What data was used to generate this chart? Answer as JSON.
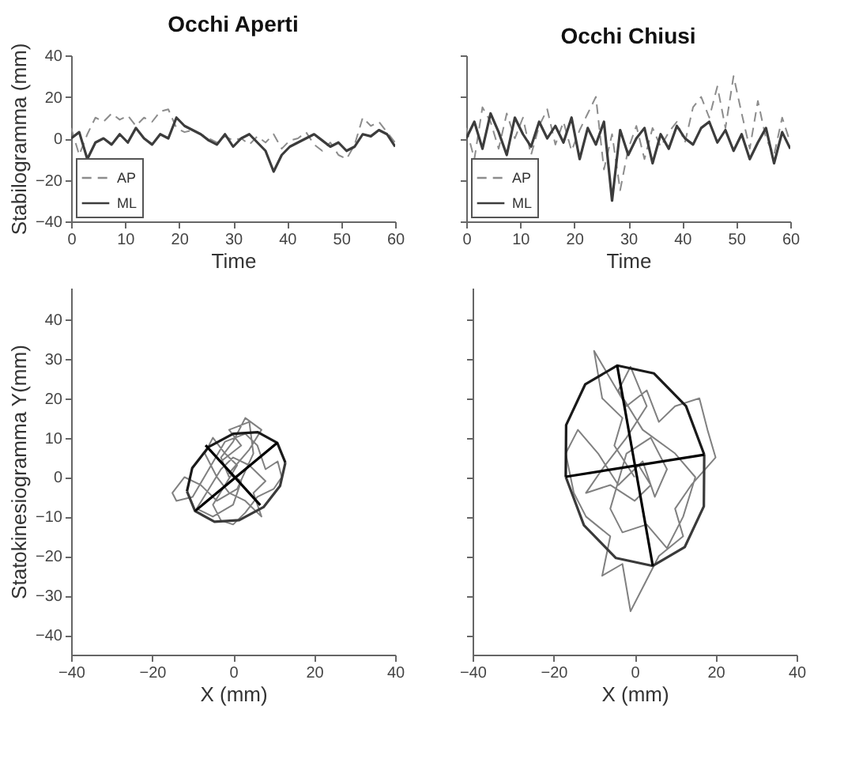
{
  "chart_data": [
    {
      "type": "line",
      "title": "Occhi Aperti",
      "xlabel": "Time",
      "ylabel": "Stabilogramma (mm)",
      "xlim": [
        0,
        60
      ],
      "ylim": [
        -40,
        40
      ],
      "xticks": [
        0,
        10,
        20,
        30,
        40,
        50,
        60
      ],
      "yticks": [
        -40,
        -20,
        0,
        20,
        40
      ],
      "legend": "bottom left",
      "x": [
        0,
        1.5,
        3,
        4.5,
        6,
        7.5,
        9,
        10.5,
        12,
        13.5,
        15,
        16.5,
        18,
        19.5,
        21,
        22.5,
        24,
        25.5,
        27,
        28.5,
        30,
        31.5,
        33,
        34.5,
        36,
        37.5,
        39,
        40.5,
        42,
        43.5,
        45,
        46.5,
        48,
        49.5,
        51,
        52.5,
        54,
        55.5,
        57,
        58.5,
        60
      ],
      "series": [
        {
          "name": "AP",
          "color": "#8c8c8c",
          "line_style": "dashed",
          "values": [
            5,
            -8,
            2,
            10,
            8,
            12,
            9,
            11,
            6,
            10,
            8,
            13,
            14,
            5,
            3,
            4,
            2,
            0,
            -2,
            1,
            -1,
            0,
            -3,
            1,
            -2,
            2,
            -5,
            -1,
            0,
            3,
            -3,
            -6,
            -2,
            -8,
            -10,
            -3,
            10,
            6,
            8,
            3,
            -2
          ]
        },
        {
          "name": "ML",
          "color": "#3c3c3c",
          "line_style": "solid",
          "values": [
            0,
            3,
            -10,
            -2,
            0,
            -3,
            2,
            -2,
            5,
            0,
            -3,
            2,
            0,
            10,
            6,
            4,
            2,
            -1,
            -3,
            2,
            -4,
            0,
            2,
            -2,
            -6,
            -16,
            -8,
            -4,
            -2,
            0,
            2,
            -1,
            -4,
            -2,
            -6,
            -4,
            2,
            1,
            4,
            2,
            -4
          ]
        }
      ]
    },
    {
      "type": "line",
      "title": "Occhi Chiusi",
      "xlabel": "Time",
      "xlim": [
        0,
        60
      ],
      "ylim": [
        -40,
        40
      ],
      "xticks": [
        0,
        10,
        20,
        30,
        40,
        50,
        60
      ],
      "yticks": [
        -40,
        -20,
        0,
        20,
        40
      ],
      "legend": "bottom left",
      "tick_labels": "x",
      "x": [
        0,
        1.5,
        3,
        4.5,
        6,
        7.5,
        9,
        10.5,
        12,
        13.5,
        15,
        16.5,
        18,
        19.5,
        21,
        22.5,
        24,
        25.5,
        27,
        28.5,
        30,
        31.5,
        33,
        34.5,
        36,
        37.5,
        39,
        40.5,
        42,
        43.5,
        45,
        46.5,
        48,
        49.5,
        51,
        52.5,
        54,
        55.5,
        57,
        58.5,
        60
      ],
      "series": [
        {
          "name": "AP",
          "color": "#8c8c8c",
          "line_style": "dashed",
          "values": [
            5,
            -10,
            15,
            8,
            -5,
            12,
            0,
            10,
            -8,
            6,
            14,
            -3,
            8,
            -6,
            4,
            12,
            20,
            -15,
            2,
            -25,
            -5,
            6,
            -10,
            5,
            -4,
            3,
            8,
            -2,
            15,
            20,
            10,
            25,
            5,
            30,
            12,
            -5,
            18,
            0,
            -8,
            10,
            -2
          ]
        },
        {
          "name": "ML",
          "color": "#3c3c3c",
          "line_style": "solid",
          "values": [
            0,
            8,
            -5,
            12,
            3,
            -8,
            10,
            2,
            -4,
            8,
            0,
            6,
            -2,
            10,
            -10,
            5,
            -3,
            8,
            -30,
            4,
            -8,
            0,
            5,
            -12,
            2,
            -5,
            6,
            0,
            -3,
            5,
            8,
            -2,
            4,
            -6,
            2,
            -10,
            -2,
            5,
            -12,
            3,
            -5
          ]
        }
      ]
    },
    {
      "type": "line",
      "xlabel": "X (mm)",
      "ylabel": "Statokinesiogramma Y(mm)",
      "xlim": [
        -40,
        40
      ],
      "ylim": [
        -45,
        48
      ],
      "xticks": [
        -40,
        -20,
        0,
        20,
        40
      ],
      "yticks": [
        -40,
        -30,
        -20,
        -10,
        0,
        10,
        20,
        30,
        40
      ],
      "series": [
        {
          "color": "#808080",
          "x": [
            0,
            -3,
            2,
            -1,
            4,
            5,
            1,
            -4,
            -8,
            -12,
            -15,
            -14,
            -10,
            -6,
            -2,
            3,
            6,
            8,
            11,
            12,
            10,
            6,
            3,
            0,
            -3,
            -5,
            -2,
            1,
            -2,
            -5,
            -7,
            -4,
            -1,
            3,
            7,
            5,
            8,
            4,
            0,
            -3,
            -6,
            -9,
            -5,
            0,
            2,
            -1,
            4,
            7,
            3,
            0,
            -3,
            -1
          ],
          "values": [
            0,
            4,
            8,
            12,
            14,
            6,
            -3,
            -6,
            -2,
            0,
            -4,
            -6,
            -5,
            2,
            9,
            11,
            8,
            2,
            4,
            0,
            -3,
            -5,
            -9,
            -12,
            -11,
            -7,
            -2,
            3,
            6,
            10,
            6,
            0,
            -4,
            -6,
            -10,
            -4,
            -1,
            3,
            5,
            2,
            -3,
            -8,
            -10,
            -7,
            -1,
            1,
            7,
            12,
            15,
            9,
            5,
            0
          ]
        },
        {
          "color": "#1a1a1a",
          "x": [
            -11.4,
            -10.1,
            -6,
            0,
            6.1,
            10.9,
            12.9
          ],
          "values": [
            -3.6,
            2.3,
            7.7,
            11,
            11.4,
            8.7,
            3.7
          ]
        },
        {
          "color": "#3a3a3a",
          "x": [
            -11.4,
            -9.4,
            -4.6,
            1.5,
            7.5,
            11.6,
            12.9
          ],
          "values": [
            -3.6,
            -8.6,
            -11.3,
            -10.9,
            -7.6,
            -2.2,
            3.7
          ]
        },
        {
          "color": "#000000",
          "x": [
            -9.4,
            10.9
          ],
          "values": [
            -8.6,
            8.7
          ]
        },
        {
          "color": "#000000",
          "x": [
            -6.8,
            6.7
          ],
          "values": [
            8.1,
            -7.1
          ]
        }
      ]
    },
    {
      "type": "line",
      "xlabel": "X (mm)",
      "xlim": [
        -40,
        40
      ],
      "ylim": [
        -45,
        48
      ],
      "xticks": [
        -40,
        -20,
        0,
        20,
        40
      ],
      "yticks": [
        -40,
        -30,
        -20,
        -10,
        0,
        10,
        20,
        30,
        40
      ],
      "tick_labels": "x",
      "series": [
        {
          "color": "#808080",
          "x": [
            0,
            -5,
            -3,
            -8,
            -10,
            -6,
            -2,
            3,
            6,
            10,
            16,
            18,
            20,
            14,
            10,
            12,
            6,
            2,
            -1,
            -3,
            -8,
            -6,
            -12,
            -15,
            -17,
            -14,
            -9,
            -4,
            2,
            5,
            8,
            4,
            -2,
            -6,
            -3,
            3,
            8,
            12,
            15,
            10,
            2,
            -4,
            -1,
            3,
            -2,
            -8,
            -12,
            -6,
            0,
            4,
            1
          ],
          "values": [
            0,
            8,
            15,
            20,
            32,
            25,
            18,
            22,
            14,
            18,
            20,
            12,
            5,
            -2,
            -8,
            -15,
            -20,
            -28,
            -34,
            -22,
            -25,
            -15,
            -10,
            -4,
            6,
            12,
            6,
            -2,
            4,
            -5,
            2,
            10,
            6,
            -8,
            -14,
            -12,
            -18,
            -10,
            0,
            6,
            12,
            22,
            28,
            18,
            10,
            2,
            -4,
            -2,
            -6,
            -2,
            3
          ]
        },
        {
          "color": "#1a1a1a",
          "x": [
            -17,
            -16.9,
            -12.2,
            -4.3,
            4.8,
            12.7,
            17.2
          ],
          "values": [
            0.1,
            13.2,
            23.5,
            28.3,
            26.3,
            18,
            5.7
          ]
        },
        {
          "color": "#3a3a3a",
          "x": [
            -17,
            -12.5,
            -4.6,
            4.5,
            12.4,
            17.1,
            17.2
          ],
          "values": [
            0.1,
            -12.2,
            -20.5,
            -22.5,
            -17.7,
            -7.4,
            5.7
          ]
        },
        {
          "color": "#000000",
          "x": [
            -4.3,
            4.5
          ],
          "values": [
            28.3,
            -22.5
          ]
        },
        {
          "color": "#000000",
          "x": [
            -17,
            17.2
          ],
          "values": [
            0.1,
            5.7
          ]
        }
      ]
    }
  ]
}
